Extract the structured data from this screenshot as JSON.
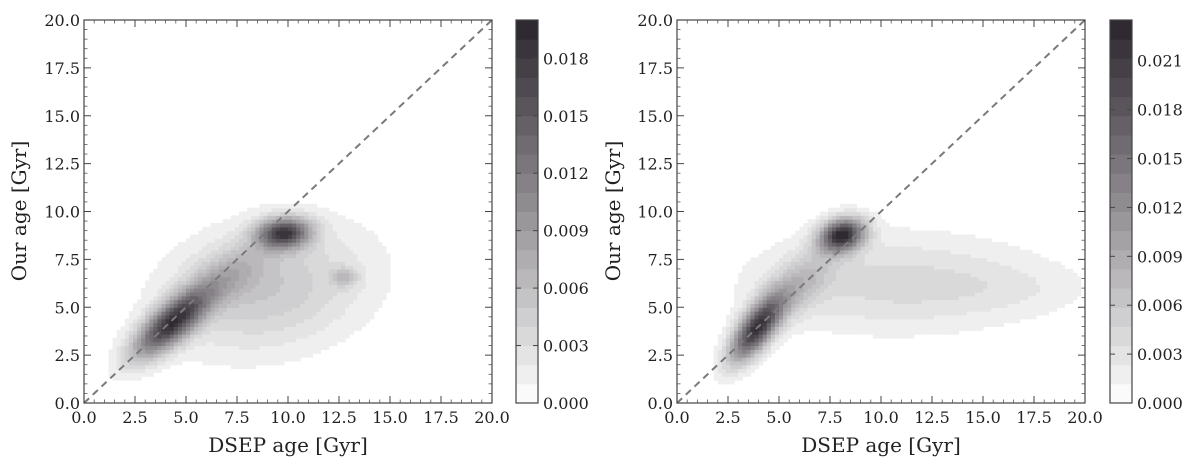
{
  "chart_data": [
    {
      "type": "heatmap",
      "title": "",
      "xlabel": "DSEP age [Gyr]",
      "ylabel": "Our age [Gyr]",
      "xlim": [
        0,
        20
      ],
      "ylim": [
        0,
        20
      ],
      "xticks": [
        "0.0",
        "2.5",
        "5.0",
        "7.5",
        "10.0",
        "12.5",
        "15.0",
        "17.5",
        "20.0"
      ],
      "yticks": [
        "0.0",
        "2.5",
        "5.0",
        "7.5",
        "10.0",
        "12.5",
        "15.0",
        "17.5",
        "20.0"
      ],
      "reference_line": "y = x (dashed)",
      "colorbar": {
        "range": [
          0,
          0.02
        ],
        "ticks": [
          "0.000",
          "0.003",
          "0.006",
          "0.009",
          "0.012",
          "0.015",
          "0.018"
        ],
        "colormap": "white-to-near-black"
      },
      "density_components": [
        {
          "x": 4.3,
          "y": 4.2,
          "sx": 1.3,
          "sy": 1.25,
          "rho": 0.75,
          "w": 0.0175
        },
        {
          "x": 9.8,
          "y": 8.9,
          "sx": 0.9,
          "sy": 0.55,
          "rho": 0.1,
          "w": 0.0165
        },
        {
          "x": 9.0,
          "y": 6.0,
          "sx": 3.4,
          "sy": 2.3,
          "rho": 0.2,
          "w": 0.005
        },
        {
          "x": 12.8,
          "y": 6.6,
          "sx": 0.45,
          "sy": 0.35,
          "rho": 0.0,
          "w": 0.004
        },
        {
          "x": 7.2,
          "y": 6.8,
          "sx": 1.3,
          "sy": 1.1,
          "rho": 0.5,
          "w": 0.0035
        }
      ]
    },
    {
      "type": "heatmap",
      "title": "",
      "xlabel": "DSEP age [Gyr]",
      "ylabel": "Our age [Gyr]",
      "xlim": [
        0,
        20
      ],
      "ylim": [
        0,
        20
      ],
      "xticks": [
        "0.0",
        "2.5",
        "5.0",
        "7.5",
        "10.0",
        "12.5",
        "15.0",
        "17.5",
        "20.0"
      ],
      "yticks": [
        "0.0",
        "2.5",
        "5.0",
        "7.5",
        "10.0",
        "12.5",
        "15.0",
        "17.5",
        "20.0"
      ],
      "reference_line": "y = x (dashed)",
      "colorbar": {
        "range": [
          0,
          0.0235
        ],
        "ticks": [
          "0.000",
          "0.003",
          "0.006",
          "0.009",
          "0.012",
          "0.015",
          "0.018",
          "0.021"
        ],
        "colormap": "white-to-near-black"
      },
      "density_components": [
        {
          "x": 3.9,
          "y": 3.9,
          "sx": 0.9,
          "sy": 1.2,
          "rho": 0.7,
          "w": 0.021
        },
        {
          "x": 8.1,
          "y": 8.8,
          "sx": 0.75,
          "sy": 0.6,
          "rho": 0.2,
          "w": 0.022
        },
        {
          "x": 10.5,
          "y": 6.3,
          "sx": 4.8,
          "sy": 1.8,
          "rho": 0.0,
          "w": 0.004
        },
        {
          "x": 6.0,
          "y": 6.2,
          "sx": 1.2,
          "sy": 1.3,
          "rho": 0.6,
          "w": 0.005
        },
        {
          "x": 16.5,
          "y": 6.0,
          "sx": 2.8,
          "sy": 1.0,
          "rho": 0.0,
          "w": 0.0012
        }
      ]
    }
  ]
}
